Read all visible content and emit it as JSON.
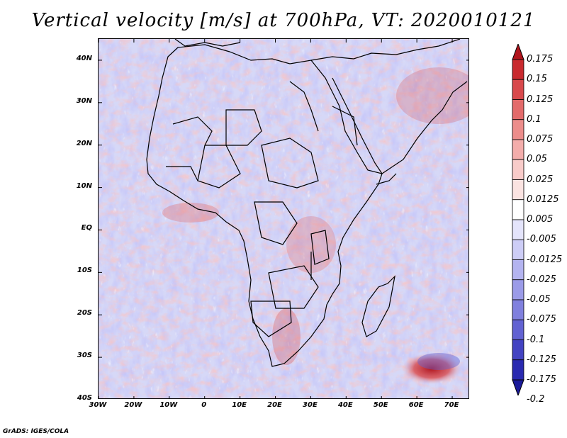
{
  "title": "Vertical velocity [m/s] at 700hPa, VT: 2020010121",
  "footer": "GrADS: IGES/COLA",
  "lat_labels": [
    "40N",
    "30N",
    "20N",
    "10N",
    "EQ",
    "10S",
    "20S",
    "30S",
    "40S"
  ],
  "lon_labels": [
    "30W",
    "20W",
    "10W",
    "0",
    "10E",
    "20E",
    "30E",
    "40E",
    "50E",
    "60E",
    "70E"
  ],
  "colorbar": {
    "levels": [
      "0.175",
      "0.15",
      "0.125",
      "0.1",
      "0.075",
      "0.05",
      "0.025",
      "0.0125",
      "0.005",
      "-0.005",
      "-0.0125",
      "-0.025",
      "-0.05",
      "-0.075",
      "-0.1",
      "-0.125",
      "-0.175",
      "-0.2"
    ],
    "colors": [
      "#b0141c",
      "#c92a2f",
      "#d8494c",
      "#e36b6b",
      "#ec8d8b",
      "#f3adab",
      "#f8cbc9",
      "#fbe3e1",
      "#ffffff",
      "#e4e4fb",
      "#cdcdf6",
      "#b4b4f0",
      "#9b9be8",
      "#8080de",
      "#6262d2",
      "#4343c2",
      "#2a2ab0",
      "#1a1a9a"
    ]
  },
  "chart_data": {
    "type": "heatmap",
    "title": "Vertical velocity [m/s] at 700hPa, VT: 2020010121",
    "variable": "Vertical velocity",
    "units": "m/s",
    "level": "700hPa",
    "valid_time": "2020010121",
    "xlim": [
      -30,
      75
    ],
    "ylim": [
      -40,
      45
    ],
    "x_ticks": [
      -30,
      -20,
      -10,
      0,
      10,
      20,
      30,
      40,
      50,
      60,
      70
    ],
    "y_ticks": [
      40,
      30,
      20,
      10,
      0,
      -10,
      -20,
      -30,
      -40
    ],
    "contour_levels": [
      0.175,
      0.15,
      0.125,
      0.1,
      0.075,
      0.05,
      0.025,
      0.0125,
      0.005,
      -0.005,
      -0.0125,
      -0.025,
      -0.05,
      -0.075,
      -0.1,
      -0.125,
      -0.175,
      -0.2
    ]
  }
}
